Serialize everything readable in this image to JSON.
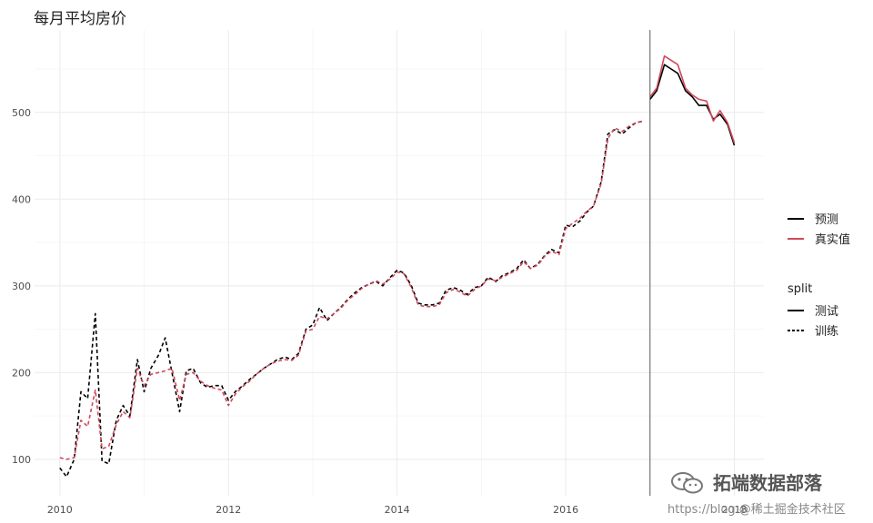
{
  "chart_data": {
    "type": "line",
    "title": "每月平均房价",
    "xlabel": "",
    "ylabel": "",
    "xlim": [
      2009.7,
      2018.35
    ],
    "ylim": [
      58,
      595
    ],
    "x_ticks": [
      2010,
      2012,
      2014,
      2016,
      2018
    ],
    "x_tick_labels": [
      "2010",
      "2012",
      "2014",
      "2016",
      "2018"
    ],
    "y_ticks": [
      100,
      200,
      300,
      400,
      500
    ],
    "y_tick_labels": [
      "100",
      "200",
      "300",
      "400",
      "500"
    ],
    "grid": true,
    "split_x": 2017.0,
    "legend_position": "right",
    "legend": {
      "color_entries": [
        {
          "label": "预测",
          "color": "#000000"
        },
        {
          "label": "真实值",
          "color": "#d1495b"
        }
      ],
      "linetype_title": "split",
      "linetype_entries": [
        {
          "label": "测试",
          "dash": "solid"
        },
        {
          "label": "训练",
          "dash": "dashed"
        }
      ]
    },
    "series": [
      {
        "color": "#000000",
        "split": "训练",
        "x": [
          2010.0,
          2010.08,
          2010.17,
          2010.25,
          2010.33,
          2010.42,
          2010.5,
          2010.58,
          2010.67,
          2010.75,
          2010.83,
          2010.92,
          2011.0,
          2011.08,
          2011.17,
          2011.25,
          2011.33,
          2011.42,
          2011.5,
          2011.58,
          2011.67,
          2011.75,
          2011.83,
          2011.92,
          2012.0,
          2012.08,
          2012.17,
          2012.25,
          2012.33,
          2012.42,
          2012.5,
          2012.58,
          2012.67,
          2012.75,
          2012.83,
          2012.92,
          2013.0,
          2013.08,
          2013.17,
          2013.25,
          2013.33,
          2013.42,
          2013.5,
          2013.58,
          2013.67,
          2013.75,
          2013.83,
          2013.92,
          2014.0,
          2014.08,
          2014.17,
          2014.25,
          2014.33,
          2014.42,
          2014.5,
          2014.58,
          2014.67,
          2014.75,
          2014.83,
          2014.92,
          2015.0,
          2015.08,
          2015.17,
          2015.25,
          2015.33,
          2015.42,
          2015.5,
          2015.58,
          2015.67,
          2015.75,
          2015.83,
          2015.92,
          2016.0,
          2016.08,
          2016.17,
          2016.25,
          2016.33,
          2016.42,
          2016.5,
          2016.58,
          2016.67,
          2016.75,
          2016.83,
          2016.92
        ],
        "y": [
          90,
          80,
          100,
          178,
          170,
          268,
          98,
          95,
          145,
          162,
          150,
          215,
          178,
          205,
          220,
          240,
          200,
          155,
          202,
          205,
          188,
          183,
          185,
          185,
          168,
          178,
          185,
          192,
          198,
          205,
          210,
          215,
          218,
          215,
          222,
          250,
          255,
          275,
          260,
          268,
          275,
          285,
          292,
          298,
          302,
          305,
          300,
          310,
          318,
          315,
          300,
          280,
          278,
          278,
          280,
          295,
          298,
          295,
          290,
          298,
          300,
          310,
          305,
          312,
          315,
          320,
          330,
          320,
          325,
          335,
          342,
          338,
          370,
          368,
          375,
          385,
          392,
          420,
          475,
          480,
          475,
          482,
          488,
          490
        ]
      },
      {
        "color": "#d1495b",
        "split": "训练",
        "x": [
          2010.0,
          2010.08,
          2010.17,
          2010.25,
          2010.33,
          2010.42,
          2010.5,
          2010.58,
          2010.67,
          2010.75,
          2010.83,
          2010.92,
          2011.0,
          2011.08,
          2011.17,
          2011.25,
          2011.33,
          2011.42,
          2011.5,
          2011.58,
          2011.67,
          2011.75,
          2011.83,
          2011.92,
          2012.0,
          2012.08,
          2012.17,
          2012.25,
          2012.33,
          2012.42,
          2012.5,
          2012.58,
          2012.67,
          2012.75,
          2012.83,
          2012.92,
          2013.0,
          2013.08,
          2013.17,
          2013.25,
          2013.33,
          2013.42,
          2013.5,
          2013.58,
          2013.67,
          2013.75,
          2013.83,
          2013.92,
          2014.0,
          2014.08,
          2014.17,
          2014.25,
          2014.33,
          2014.42,
          2014.5,
          2014.58,
          2014.67,
          2014.75,
          2014.83,
          2014.92,
          2015.0,
          2015.08,
          2015.17,
          2015.25,
          2015.33,
          2015.42,
          2015.5,
          2015.58,
          2015.67,
          2015.75,
          2015.83,
          2015.92,
          2016.0,
          2016.08,
          2016.17,
          2016.25,
          2016.33,
          2016.42,
          2016.5,
          2016.58,
          2016.67,
          2016.75,
          2016.83,
          2016.92
        ],
        "y": [
          102,
          100,
          102,
          145,
          138,
          180,
          112,
          115,
          140,
          155,
          148,
          205,
          185,
          198,
          200,
          202,
          205,
          168,
          198,
          200,
          190,
          185,
          182,
          180,
          162,
          175,
          184,
          190,
          198,
          205,
          210,
          213,
          215,
          214,
          220,
          248,
          250,
          265,
          262,
          268,
          274,
          284,
          290,
          297,
          302,
          306,
          302,
          308,
          316,
          314,
          298,
          278,
          276,
          276,
          278,
          292,
          296,
          293,
          288,
          296,
          300,
          308,
          306,
          310,
          314,
          318,
          328,
          320,
          324,
          334,
          340,
          336,
          366,
          372,
          378,
          386,
          392,
          418,
          470,
          482,
          478,
          484,
          488,
          490
        ]
      },
      {
        "color": "#000000",
        "split": "测试",
        "x": [
          2017.0,
          2017.08,
          2017.17,
          2017.25,
          2017.33,
          2017.42,
          2017.5,
          2017.58,
          2017.67,
          2017.75,
          2017.83,
          2017.92,
          2018.0
        ],
        "y": [
          515,
          525,
          555,
          550,
          545,
          525,
          518,
          508,
          508,
          492,
          498,
          486,
          462
        ]
      },
      {
        "color": "#d1495b",
        "split": "测试",
        "x": [
          2017.0,
          2017.08,
          2017.17,
          2017.25,
          2017.33,
          2017.42,
          2017.5,
          2017.58,
          2017.67,
          2017.75,
          2017.83,
          2017.92,
          2018.0
        ],
        "y": [
          518,
          528,
          565,
          560,
          555,
          528,
          520,
          515,
          513,
          490,
          502,
          488,
          465
        ]
      }
    ]
  },
  "watermark": {
    "main": "拓端数据部落",
    "sub": "https://blog.@稀土掘金技术社区"
  }
}
